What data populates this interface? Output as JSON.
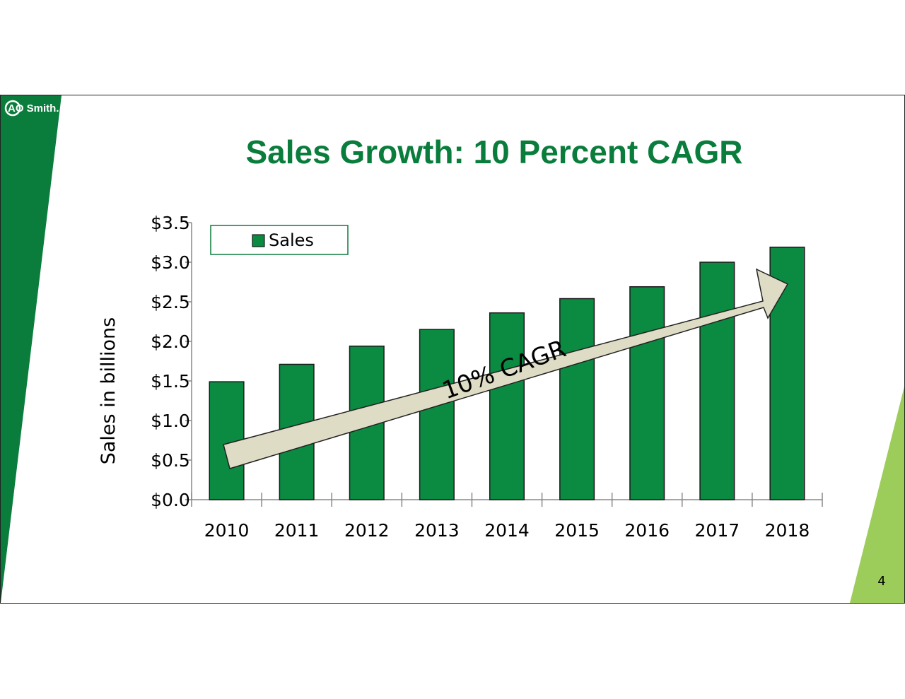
{
  "slide": {
    "logo": "AO Smith.",
    "page_number": "4",
    "colors": {
      "brand_green": "#0a7d3c",
      "bar_fill": "#0b8a42",
      "accent_lime": "#9ccd5a",
      "arrow_fill": "#dedcc4"
    }
  },
  "chart_data": {
    "type": "bar",
    "title": "Sales Growth: 10 Percent CAGR",
    "ylabel": "Sales in billions",
    "xlabel": "",
    "categories": [
      "2010",
      "2011",
      "2012",
      "2013",
      "2014",
      "2015",
      "2016",
      "2017",
      "2018"
    ],
    "series": [
      {
        "name": "Sales",
        "values": [
          1.49,
          1.71,
          1.94,
          2.15,
          2.36,
          2.54,
          2.69,
          3.0,
          3.19
        ]
      }
    ],
    "ylim": [
      0,
      3.5
    ],
    "yticks": [
      0,
      0.5,
      1.0,
      1.5,
      2.0,
      2.5,
      3.0,
      3.5
    ],
    "ytick_labels": [
      "$0.0",
      "$0.5",
      "$1.0",
      "$1.5",
      "$2.0",
      "$2.5",
      "$3.0",
      "$3.5"
    ],
    "legend_position": "top-left",
    "grid": false,
    "annotation": "10% CAGR"
  }
}
